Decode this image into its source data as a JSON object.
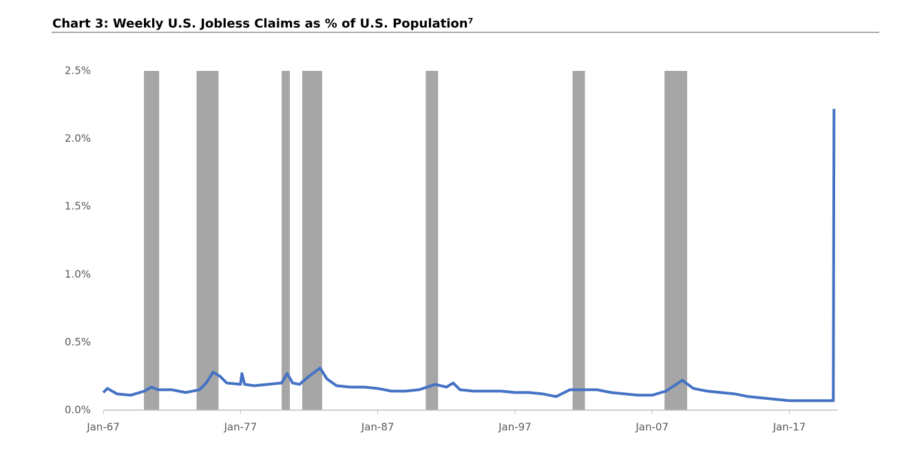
{
  "chart_data": {
    "type": "line",
    "title": "Chart 3: Weekly U.S. Jobless Claims as % of U.S. Population",
    "title_note": "7",
    "xlim": [
      1967,
      2020.5
    ],
    "xticks": [
      {
        "value": 1967,
        "label": "Jan-67"
      },
      {
        "value": 1977,
        "label": "Jan-77"
      },
      {
        "value": 1987,
        "label": "Jan-87"
      },
      {
        "value": 1997,
        "label": "Jan-97"
      },
      {
        "value": 2007,
        "label": "Jan-07"
      },
      {
        "value": 2017,
        "label": "Jan-17"
      }
    ],
    "ylim": [
      0,
      2.5
    ],
    "yticks": [
      {
        "value": 0,
        "label": "0.0%"
      },
      {
        "value": 0.5,
        "label": "0.5%"
      },
      {
        "value": 1,
        "label": "1.0%"
      },
      {
        "value": 1.5,
        "label": "1.5%"
      },
      {
        "value": 2,
        "label": "2.0%"
      },
      {
        "value": 2.5,
        "label": "2.5%"
      }
    ],
    "recession_color": "#a6a6a6",
    "recessions": [
      [
        1969.96,
        1971.07
      ],
      [
        1973.8,
        1975.4
      ],
      [
        1980.0,
        1980.6
      ],
      [
        1981.5,
        1982.95
      ],
      [
        1990.5,
        1991.4
      ],
      [
        2001.2,
        2002.1
      ],
      [
        2007.9,
        2009.55
      ]
    ],
    "series": [
      {
        "color": "#4472c4",
        "x": [
          1967.0,
          1967.3,
          1968,
          1969,
          1970,
          1970.5,
          1971,
          1972,
          1973,
          1974,
          1974.5,
          1975.0,
          1975.5,
          1976,
          1977,
          1977.1,
          1977.3,
          1978,
          1979,
          1980,
          1980.4,
          1980.8,
          1981.3,
          1982.0,
          1982.8,
          1983.3,
          1984,
          1985,
          1986,
          1987,
          1988,
          1989,
          1990,
          1991.2,
          1992,
          1992.5,
          1993,
          1994,
          1995,
          1996,
          1997,
          1998,
          1999,
          2000,
          2001,
          2002,
          2003,
          2004,
          2005,
          2006,
          2007,
          2008,
          2009.2,
          2010,
          2011,
          2012,
          2013,
          2014,
          2015,
          2016,
          2017,
          2018,
          2019,
          2020.2,
          2020.25
        ],
        "values": [
          0.13,
          0.16,
          0.12,
          0.11,
          0.14,
          0.17,
          0.15,
          0.15,
          0.13,
          0.15,
          0.2,
          0.28,
          0.25,
          0.2,
          0.19,
          0.27,
          0.19,
          0.18,
          0.19,
          0.2,
          0.27,
          0.2,
          0.19,
          0.25,
          0.31,
          0.23,
          0.18,
          0.17,
          0.17,
          0.16,
          0.14,
          0.14,
          0.15,
          0.19,
          0.17,
          0.2,
          0.15,
          0.14,
          0.14,
          0.14,
          0.13,
          0.13,
          0.12,
          0.1,
          0.15,
          0.15,
          0.15,
          0.13,
          0.12,
          0.11,
          0.11,
          0.14,
          0.22,
          0.16,
          0.14,
          0.13,
          0.12,
          0.1,
          0.09,
          0.08,
          0.07,
          0.07,
          0.07,
          0.07,
          2.22
        ]
      }
    ]
  }
}
